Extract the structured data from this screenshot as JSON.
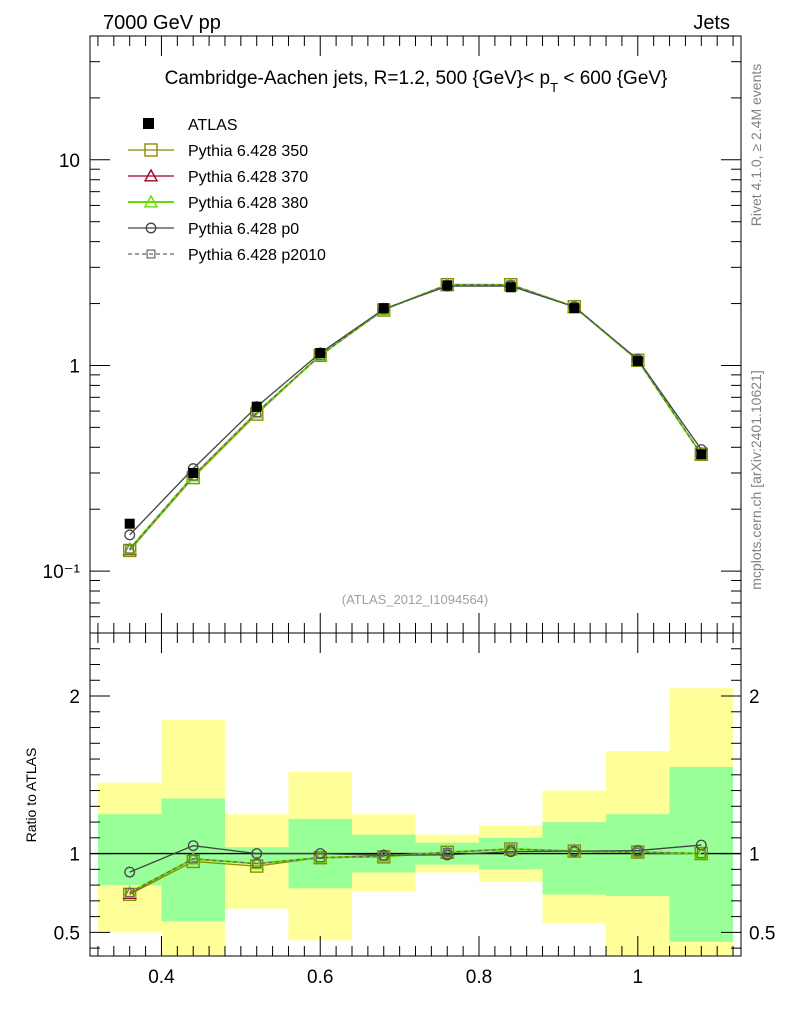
{
  "header": {
    "left": "7000 GeV pp",
    "right": "Jets"
  },
  "side_labels": {
    "rivet": "Rivet 4.1.0, ≥ 2.4M events",
    "mcplots": "mcplots.cern.ch [arXiv:2401.10621]"
  },
  "chart_data": {
    "type": "line",
    "title": "Cambridge-Aachen jets, R=1.2,  500 {GeV}< p",
    "title_sub": "T",
    "title_tail": " < 600 {GeV}",
    "watermark": "(ATLAS_2012_I1094564)",
    "xlabel": "",
    "ylabel": "",
    "ratio_ylabel": "Ratio to ATLAS",
    "xlim": [
      0.31,
      1.13
    ],
    "ylim": [
      0.05,
      40
    ],
    "ylog": true,
    "ratio_ylim": [
      0.35,
      2.4
    ],
    "x_ticks": [
      "0.4",
      "0.6",
      "0.8",
      "1"
    ],
    "y_ticks": [
      "10",
      "1",
      "10⁻¹"
    ],
    "ratio_ticks": [
      "2",
      "1",
      "0.5"
    ],
    "x": [
      0.36,
      0.44,
      0.52,
      0.6,
      0.68,
      0.76,
      0.84,
      0.92,
      1.0,
      1.08
    ],
    "bin_edges": [
      0.32,
      0.4,
      0.48,
      0.56,
      0.64,
      0.72,
      0.8,
      0.88,
      0.96,
      1.04,
      1.12
    ],
    "data": {
      "name": "ATLAS",
      "values": [
        0.17,
        0.3,
        0.63,
        1.15,
        1.9,
        2.45,
        2.4,
        1.9,
        1.05,
        0.37
      ]
    },
    "ratio_band_inner": [
      [
        0.8,
        1.25
      ],
      [
        0.57,
        1.35
      ],
      [
        0.95,
        1.04
      ],
      [
        0.78,
        1.22
      ],
      [
        0.88,
        1.12
      ],
      [
        0.93,
        1.07
      ],
      [
        0.9,
        1.1
      ],
      [
        0.74,
        1.2
      ],
      [
        0.73,
        1.25
      ],
      [
        0.44,
        1.55
      ]
    ],
    "ratio_band_outer": [
      [
        0.5,
        1.45
      ],
      [
        0.32,
        1.85
      ],
      [
        0.65,
        1.25
      ],
      [
        0.45,
        1.52
      ],
      [
        0.76,
        1.25
      ],
      [
        0.88,
        1.12
      ],
      [
        0.82,
        1.18
      ],
      [
        0.56,
        1.4
      ],
      [
        0.32,
        1.65
      ],
      [
        0.32,
        2.05
      ]
    ],
    "series": [
      {
        "name": "Pythia 6.428 350",
        "color": "#8b8b00",
        "marker": "square",
        "dash": "",
        "values": [
          0.126,
          0.285,
          0.58,
          1.12,
          1.86,
          2.47,
          2.47,
          1.93,
          1.06,
          0.37
        ]
      },
      {
        "name": "Pythia 6.428 370",
        "color": "#a0002a",
        "marker": "triangle",
        "dash": "",
        "values": [
          0.127,
          0.29,
          0.59,
          1.12,
          1.87,
          2.47,
          2.47,
          1.93,
          1.06,
          0.37
        ]
      },
      {
        "name": "Pythia 6.428 380",
        "color": "#66dd00",
        "marker": "triangle",
        "dash": "",
        "values": [
          0.128,
          0.29,
          0.59,
          1.12,
          1.87,
          2.47,
          2.47,
          1.93,
          1.06,
          0.37
        ]
      },
      {
        "name": "Pythia 6.428 p0",
        "color": "#444444",
        "marker": "circle",
        "dash": "",
        "values": [
          0.15,
          0.315,
          0.63,
          1.15,
          1.88,
          2.43,
          2.43,
          1.93,
          1.07,
          0.39
        ]
      },
      {
        "name": "Pythia 6.428 p2010",
        "color": "#666666",
        "marker": "smallsquare",
        "dash": "4,3",
        "values": [
          0.128,
          0.29,
          0.59,
          1.12,
          1.87,
          2.47,
          2.47,
          1.93,
          1.06,
          0.37
        ]
      }
    ]
  }
}
